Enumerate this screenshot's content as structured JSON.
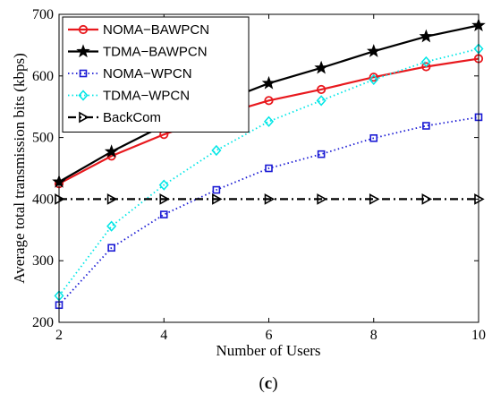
{
  "chart_data": {
    "type": "line",
    "title": "",
    "xlabel": "Number of Users",
    "ylabel": "Average total transmission bits (kbps)",
    "xlim": [
      2,
      10
    ],
    "ylim": [
      200,
      700
    ],
    "xticks": [
      2,
      4,
      6,
      8,
      10
    ],
    "yticks": [
      200,
      300,
      400,
      500,
      600,
      700
    ],
    "x": [
      2,
      3,
      4,
      5,
      6,
      7,
      8,
      9,
      10
    ],
    "grid": false,
    "legend_position": "top-left",
    "series": [
      {
        "name": "NOMA−BAWPCN",
        "values": [
          425,
          470,
          505,
          535,
          560,
          578,
          598,
          615,
          628
        ],
        "color": "#e8191e",
        "line": "solid",
        "marker": "circle"
      },
      {
        "name": "TDMA−BAWPCN",
        "values": [
          428,
          477,
          520,
          555,
          588,
          613,
          640,
          664,
          682
        ],
        "color": "#000000",
        "line": "solid",
        "marker": "star"
      },
      {
        "name": "NOMA−WPCN",
        "values": [
          228,
          321,
          375,
          415,
          450,
          473,
          499,
          519,
          533
        ],
        "color": "#1a1ad4",
        "line": "dotted",
        "marker": "square"
      },
      {
        "name": "TDMA−WPCN",
        "values": [
          243,
          356,
          423,
          479,
          526,
          560,
          594,
          623,
          644
        ],
        "color": "#00e6e6",
        "line": "dotted",
        "marker": "diamond"
      },
      {
        "name": "BackCom",
        "values": [
          400,
          400,
          400,
          400,
          400,
          400,
          400,
          400,
          400
        ],
        "color": "#000000",
        "line": "dashdot",
        "marker": "triangle-right"
      }
    ]
  },
  "caption": {
    "open": "(",
    "letter": "c",
    "close": ")"
  }
}
